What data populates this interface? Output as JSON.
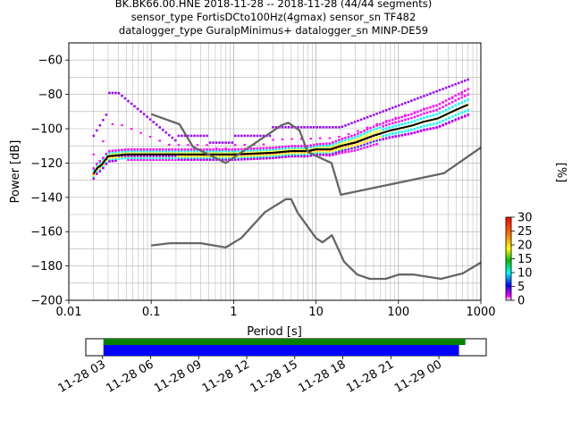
{
  "title_lines": [
    "BK.BK66.00.HNE   2018-11-28 -- 2018-11-28  (44/44 segments)",
    "sensor_type FortisDCto100Hz(4gmax) sensor_sn TF482",
    "datalogger_type GuralpMinimus+ datalogger_sn MINP-DE59"
  ],
  "chart_data": {
    "type": "line",
    "xlabel": "Period [s]",
    "ylabel": "Power [dB]",
    "xscale": "log",
    "xlim": [
      0.01,
      1000
    ],
    "ylim": [
      -200,
      -50
    ],
    "grid": true,
    "x_tick_labels": [
      "0.01",
      "0.1",
      "1",
      "10",
      "100",
      "1000"
    ],
    "y_tick_labels": [
      "−200",
      "−180",
      "−160",
      "−140",
      "−120",
      "−100",
      "−80",
      "−60"
    ],
    "colorbar": {
      "label": "[%]",
      "range": [
        0,
        30
      ],
      "tick_labels": [
        "0",
        "5",
        "10",
        "15",
        "20",
        "25",
        "30"
      ]
    },
    "series": [
      {
        "role": "median-probability-track",
        "color": "#000000",
        "x": [
          0.02,
          0.022,
          0.025,
          0.03,
          0.05,
          0.1,
          0.3,
          1,
          3,
          5,
          8,
          10,
          15,
          20,
          30,
          50,
          80,
          100,
          150,
          200,
          300,
          500,
          700
        ],
        "y": [
          -126,
          -123,
          -121,
          -116,
          -115,
          -115,
          -115,
          -115,
          -114,
          -113,
          -113,
          -112,
          -112,
          -110,
          -108,
          -104,
          -101,
          -100,
          -98,
          -96,
          -94,
          -89,
          -86
        ]
      },
      {
        "role": "noise-model-high",
        "color": "#666666",
        "x": [
          0.1,
          0.22,
          0.32,
          0.8,
          3.8,
          4.6,
          6.3,
          7.9,
          15.4,
          20,
          354.8,
          1000
        ],
        "y": [
          -91.5,
          -97.4,
          -110.5,
          -120,
          -98,
          -96.5,
          -101,
          -113.5,
          -120,
          -138.5,
          -126,
          -111
        ]
      },
      {
        "role": "noise-model-low",
        "color": "#666666",
        "x": [
          0.1,
          0.17,
          0.4,
          0.8,
          1.24,
          2.4,
          4.3,
          5,
          6,
          10,
          12,
          15.6,
          21.9,
          31.6,
          45,
          70,
          101,
          154,
          328,
          600,
          1000
        ],
        "y": [
          -168,
          -166.7,
          -166.7,
          -169.2,
          -163.7,
          -148.6,
          -141.1,
          -141.1,
          -149,
          -163.8,
          -166.2,
          -162.1,
          -177.5,
          -185,
          -187.5,
          -187.5,
          -185,
          -185,
          -187.5,
          -184.4,
          -178
        ]
      }
    ],
    "time_coverage": {
      "tick_labels": [
        "11-28 03",
        "11-28 06",
        "11-28 09",
        "11-28 12",
        "11-28 15",
        "11-28 18",
        "11-28 21",
        "11-29 00"
      ],
      "range_hours": [
        0,
        25
      ],
      "data_hours": [
        1.1,
        23.7
      ],
      "processed_hours": [
        1.1,
        23.3
      ],
      "data_color": "#008000",
      "processed_color": "#0000ff"
    }
  }
}
